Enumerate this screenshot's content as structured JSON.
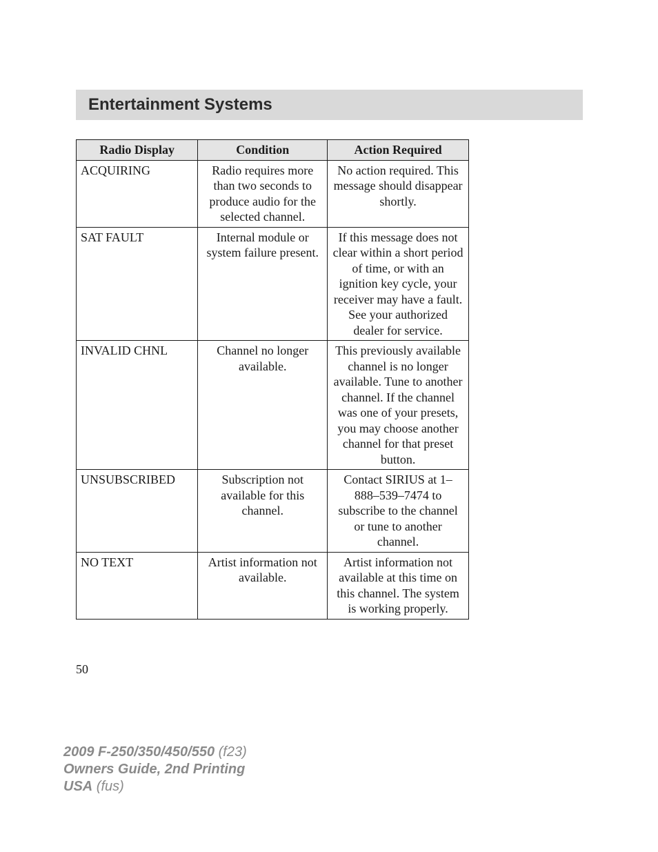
{
  "section": {
    "title": "Entertainment Systems"
  },
  "table": {
    "type": "table",
    "columns": [
      "Radio Display",
      "Condition",
      "Action Required"
    ],
    "column_widths_pct": [
      31,
      33,
      36
    ],
    "header_bg": "#e4e4e4",
    "border_color": "#1a1a1a",
    "font_size_pt": 13,
    "rows": [
      {
        "display": "ACQUIRING",
        "condition": "Radio requires more than two seconds to produce audio for the selected channel.",
        "action": "No action required. This message should disappear shortly."
      },
      {
        "display": "SAT FAULT",
        "condition": "Internal module or system failure present.",
        "action": "If this message does not clear within a short period of time, or with an ignition key cycle, your receiver may have a fault. See your authorized dealer for service."
      },
      {
        "display": "INVALID CHNL",
        "condition": "Channel no longer available.",
        "action": "This previously available channel is no longer available. Tune to another channel. If the channel was one of your presets, you may choose another channel for that preset button."
      },
      {
        "display": "UNSUBSCRIBED",
        "condition": "Subscription not available for this channel.",
        "action": "Contact SIRIUS at 1–888–539–7474 to subscribe to the channel or tune to another channel."
      },
      {
        "display": "NO TEXT",
        "condition": "Artist information not available.",
        "action": "Artist information not available at this time on this channel. The system is working properly."
      }
    ]
  },
  "page_number": "50",
  "footer": {
    "model_bold": "2009 F-250/350/450/550",
    "model_code": "(f23)",
    "guide": "Owners Guide, 2nd Printing",
    "region_bold": "USA",
    "region_code": "(fus)"
  },
  "style": {
    "page_bg": "#ffffff",
    "section_bar_bg": "#d9d9d9",
    "section_title_font": "Arial",
    "section_title_size_pt": 18,
    "body_font": "Times New Roman",
    "footer_color": "#8a8a8a",
    "footer_font": "Arial"
  }
}
